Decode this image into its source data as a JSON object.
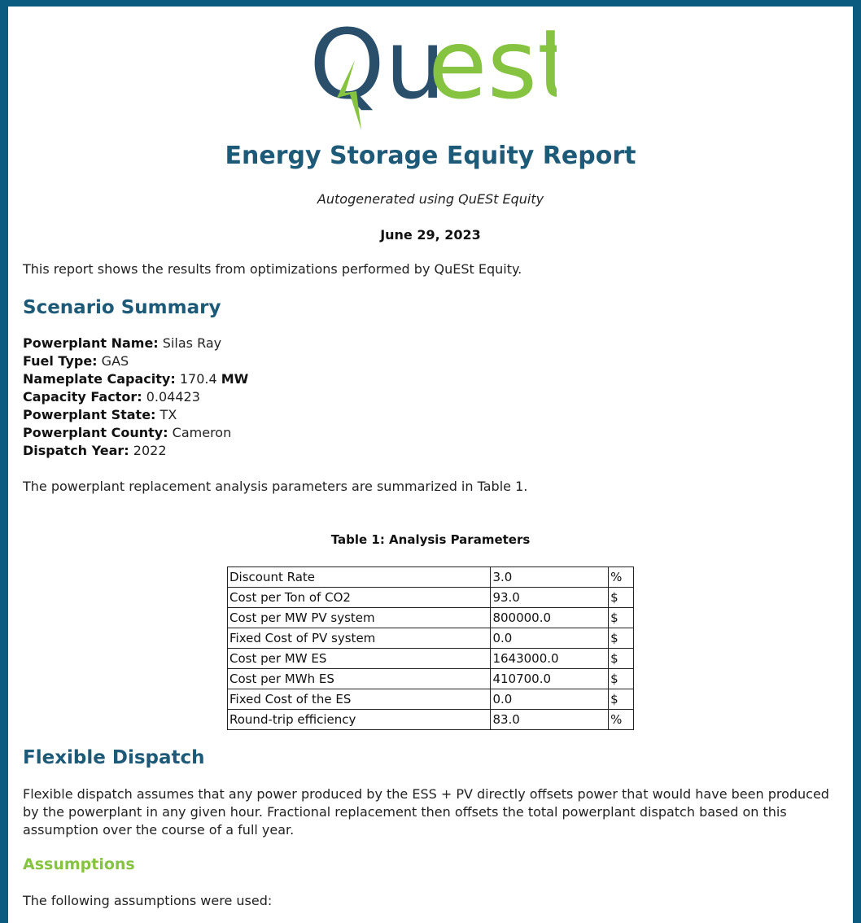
{
  "logo": {
    "text_left": "Qu",
    "text_right": "est",
    "color_dark": "#2a4f6b",
    "color_green": "#86c341",
    "icon": "lightning-bolt-icon"
  },
  "header": {
    "title": "Energy Storage Equity Report",
    "subtitle": "Autogenerated using QuESt Equity",
    "date": "June 29, 2023"
  },
  "intro": "This report shows the results from optimizations performed by QuESt Equity.",
  "scenario": {
    "heading": "Scenario Summary",
    "items": [
      {
        "label": "Powerplant Name:",
        "value": "Silas Ray",
        "unit": ""
      },
      {
        "label": "Fuel Type:",
        "value": "GAS",
        "unit": ""
      },
      {
        "label": "Nameplate Capacity:",
        "value": "170.4",
        "unit": "MW"
      },
      {
        "label": "Capacity Factor:",
        "value": "0.04423",
        "unit": ""
      },
      {
        "label": "Powerplant State:",
        "value": "TX",
        "unit": ""
      },
      {
        "label": "Powerplant County:",
        "value": "Cameron",
        "unit": ""
      },
      {
        "label": "Dispatch Year:",
        "value": "2022",
        "unit": ""
      }
    ],
    "summary_text": "The powerplant replacement analysis parameters are summarized in Table 1."
  },
  "table": {
    "caption": "Table 1: Analysis Parameters",
    "rows": [
      [
        "Discount Rate",
        "3.0",
        "%"
      ],
      [
        "Cost per Ton of CO2",
        "93.0",
        "$"
      ],
      [
        "Cost per MW PV system",
        "800000.0",
        "$"
      ],
      [
        "Fixed Cost of PV system",
        "0.0",
        "$"
      ],
      [
        "Cost per MW ES",
        "1643000.0",
        "$"
      ],
      [
        "Cost per MWh ES",
        "410700.0",
        "$"
      ],
      [
        "Fixed Cost of the ES",
        "0.0",
        "$"
      ],
      [
        "Round-trip efficiency",
        "83.0",
        "%"
      ]
    ]
  },
  "flexible": {
    "heading": "Flexible Dispatch",
    "text": "Flexible dispatch assumes that any power produced by the ESS + PV directly offsets power that would have been produced by the powerplant in any given hour. Fractional replacement then offsets the total powerplant dispatch based on this assumption over the course of a full year.",
    "assumptions_heading": "Assumptions",
    "assumptions_text": "The following assumptions were used:"
  }
}
